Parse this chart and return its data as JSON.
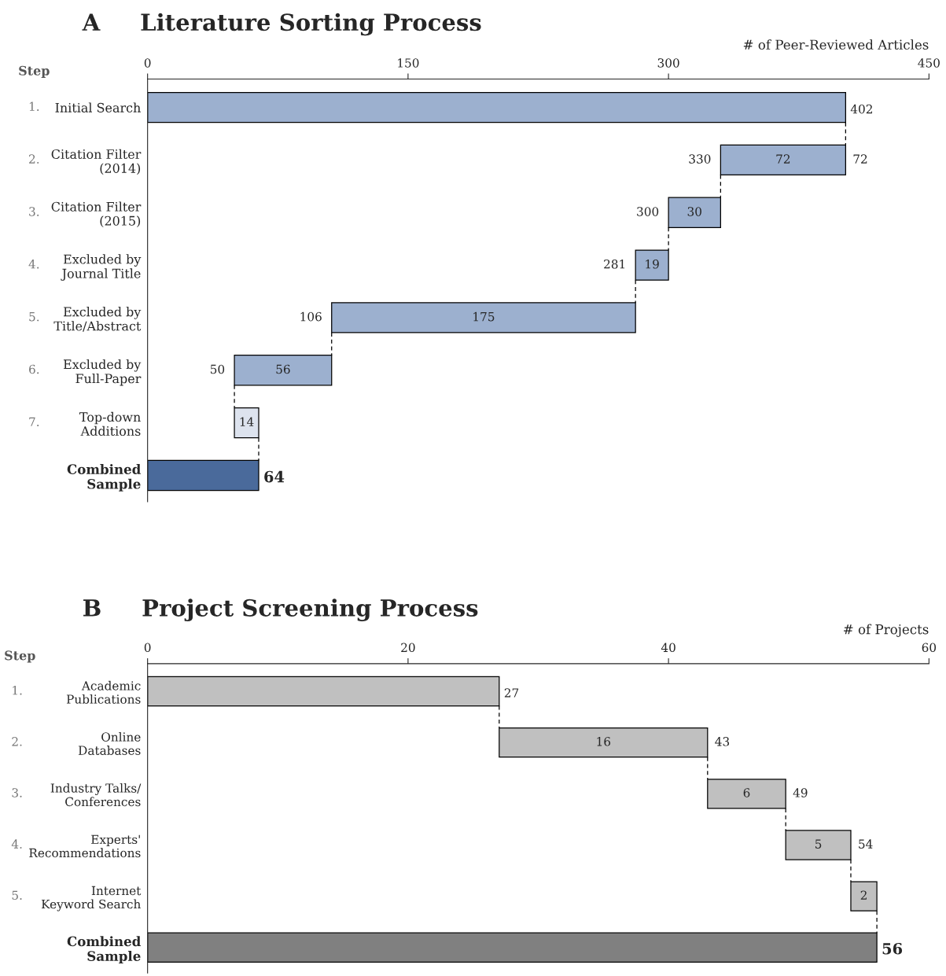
{
  "chart_data": [
    {
      "type": "bar",
      "orientation": "horizontal",
      "title": "A     Literature Sorting Process",
      "xlabel": "# of Peer-Reviewed Articles",
      "categories": [
        "Initial Search",
        "Citation Filter\n(2014)",
        "Citation Filter\n(2015)",
        "Excluded by\nJournal Title",
        "Excluded by\nTitle/Abstract",
        "Excluded by\nFull-Paper",
        "Top-down\nAdditions",
        "Combined\nSample"
      ],
      "values": [
        402,
        72,
        30,
        19,
        175,
        56,
        14,
        64
      ],
      "base": [
        0,
        330,
        300,
        281,
        106,
        50,
        50,
        0
      ],
      "colors": [
        "#9cb0cf",
        "#9cb0cf",
        "#9cb0cf",
        "#9cb0cf",
        "#9cb0cf",
        "#9cb0cf",
        "#dde3ee",
        "#4a6a9b"
      ],
      "value_labels": [
        "402",
        "72",
        "30",
        "19",
        "175",
        "56",
        "14",
        "64"
      ],
      "xlim": [
        0,
        450
      ],
      "xticks": [
        0,
        150,
        300,
        450
      ],
      "grid": false,
      "legend": false,
      "annotations": [
        "Step",
        "1.",
        "2.",
        "3.",
        "4.",
        "5.",
        "6.",
        "7.",
        {
          "text": "330",
          "x": 330,
          "y": "Citation Filter\n(2014)"
        },
        "72",
        {
          "text": "300",
          "x": 300,
          "y": "Citation Filter\n(2015)"
        },
        {
          "text": "281",
          "x": 281,
          "y": "Excluded by\nJournal Title"
        },
        {
          "text": "106",
          "x": 106,
          "y": "Excluded by\nTitle/Abstract"
        },
        {
          "text": "50",
          "x": 50,
          "y": "Excluded by\nFull-Paper"
        }
      ]
    },
    {
      "type": "bar",
      "orientation": "horizontal",
      "title": "B     Project Screening Process",
      "xlabel": "# of Projects",
      "categories": [
        "Academic\nPublications",
        "Online\nDatabases",
        "Industry Talks/\nConferences",
        "Experts'\nRecommendations",
        "Internet\nKeyword Search",
        "Combined\nSample"
      ],
      "values": [
        27,
        16,
        6,
        5,
        2,
        56
      ],
      "base": [
        0,
        27,
        43,
        49,
        54,
        0
      ],
      "colors": [
        "#c0c0c0",
        "#c0c0c0",
        "#c0c0c0",
        "#c0c0c0",
        "#c0c0c0",
        "#808080"
      ],
      "value_labels": [
        "27",
        "16",
        "6",
        "5",
        "2",
        "56"
      ],
      "xlim": [
        0,
        60
      ],
      "xticks": [
        0,
        20,
        40,
        60
      ],
      "grid": false,
      "legend": false,
      "annotations": [
        "Step",
        "1.",
        "2.",
        "3.",
        "4.",
        "5.",
        {
          "text": "43",
          "x": 43,
          "y": "Online\nDatabases"
        },
        {
          "text": "49",
          "x": 49,
          "y": "Industry Talks/\nConferences"
        },
        {
          "text": "54",
          "x": 54,
          "y": "Experts'\nRecommendations"
        }
      ]
    }
  ]
}
